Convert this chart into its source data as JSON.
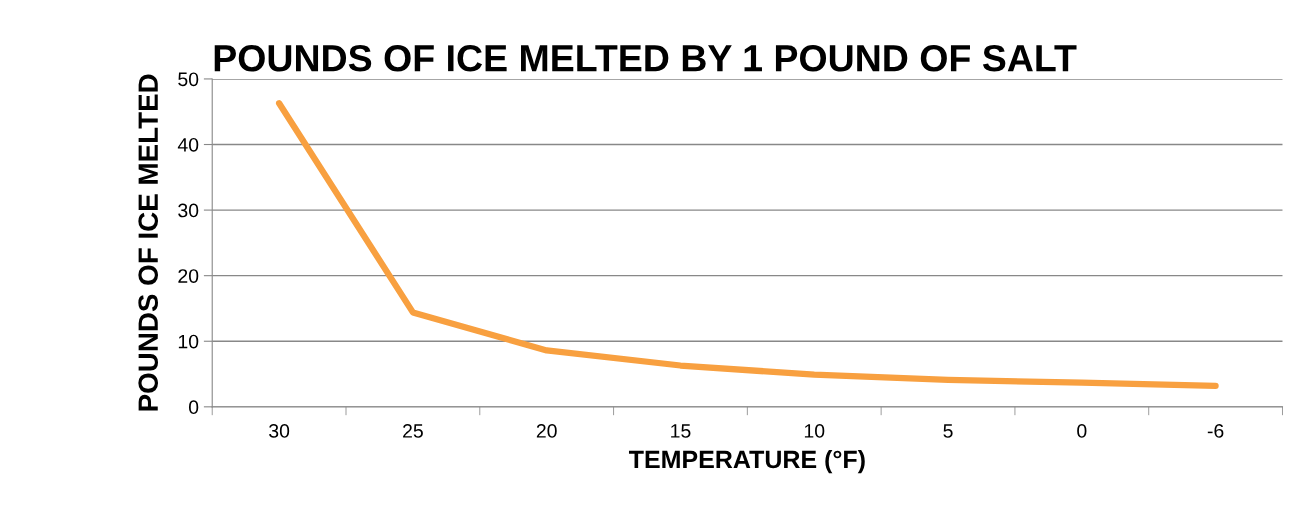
{
  "chart_data": {
    "type": "line",
    "title": "POUNDS OF ICE MELTED BY 1 POUND OF SALT",
    "xlabel": "TEMPERATURE (°F)",
    "ylabel": "POUNDS OF ICE MELTED",
    "categories": [
      "30",
      "25",
      "20",
      "15",
      "10",
      "5",
      "0",
      "-6"
    ],
    "series": [
      {
        "values": [
          46.3,
          14.4,
          8.6,
          6.3,
          4.9,
          4.1,
          3.7,
          3.2
        ],
        "color": "#f8a040"
      }
    ],
    "ylim": [
      0,
      50
    ],
    "yticks": [
      0,
      10,
      20,
      30,
      40,
      50
    ],
    "grid": "y",
    "legend": false,
    "marker": "none",
    "line_style": "solid"
  }
}
